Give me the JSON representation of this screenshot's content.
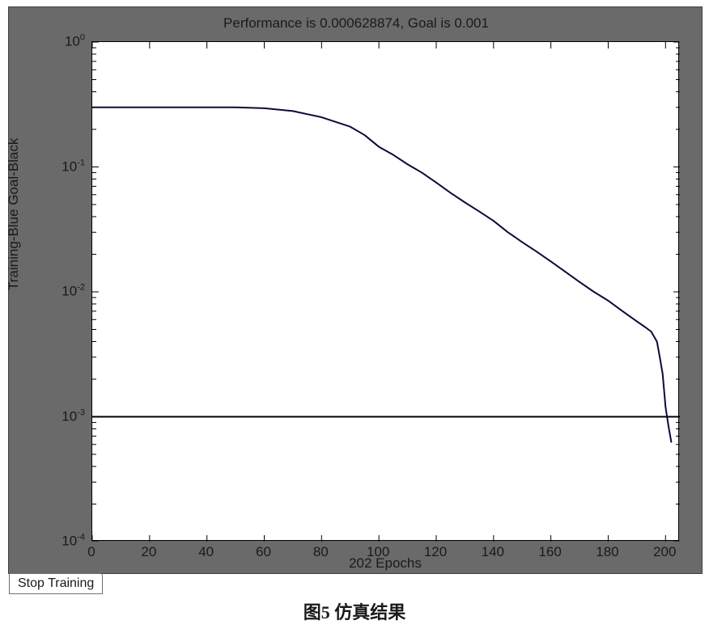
{
  "figure": {
    "title": "Performance is 0.000628874, Goal is 0.001",
    "xlabel": "202 Epochs",
    "ylabel": "Training-Blue   Goal-Black",
    "background_color": "#6a6a6a",
    "plot_background": "#ffffff",
    "axis_color": "#000000",
    "title_fontsize": 17,
    "label_fontsize": 17,
    "tick_fontsize": 17,
    "xlim": [
      0,
      205
    ],
    "ylim_log10": [
      -4,
      0
    ],
    "xticks": [
      0,
      20,
      40,
      60,
      80,
      100,
      120,
      140,
      160,
      180,
      200
    ],
    "ytick_exponents": [
      0,
      -1,
      -2,
      -3,
      -4
    ],
    "y_minor_ticks_per_decade": [
      2,
      3,
      4,
      5,
      6,
      7,
      8,
      9
    ],
    "goal_line": {
      "value": 0.001,
      "log10": -3,
      "color": "#000000",
      "width": 2.0
    },
    "training_curve": {
      "color": "#0a0a3a",
      "width": 2.0,
      "points": [
        {
          "x": 0,
          "y": 0.3
        },
        {
          "x": 20,
          "y": 0.3
        },
        {
          "x": 40,
          "y": 0.3
        },
        {
          "x": 50,
          "y": 0.3
        },
        {
          "x": 60,
          "y": 0.295
        },
        {
          "x": 70,
          "y": 0.28
        },
        {
          "x": 80,
          "y": 0.25
        },
        {
          "x": 90,
          "y": 0.21
        },
        {
          "x": 95,
          "y": 0.18
        },
        {
          "x": 100,
          "y": 0.145
        },
        {
          "x": 105,
          "y": 0.125
        },
        {
          "x": 110,
          "y": 0.105
        },
        {
          "x": 115,
          "y": 0.09
        },
        {
          "x": 120,
          "y": 0.075
        },
        {
          "x": 125,
          "y": 0.062
        },
        {
          "x": 130,
          "y": 0.052
        },
        {
          "x": 135,
          "y": 0.044
        },
        {
          "x": 140,
          "y": 0.037
        },
        {
          "x": 145,
          "y": 0.03
        },
        {
          "x": 150,
          "y": 0.025
        },
        {
          "x": 155,
          "y": 0.021
        },
        {
          "x": 160,
          "y": 0.0175
        },
        {
          "x": 165,
          "y": 0.0145
        },
        {
          "x": 170,
          "y": 0.012
        },
        {
          "x": 175,
          "y": 0.01
        },
        {
          "x": 180,
          "y": 0.0085
        },
        {
          "x": 185,
          "y": 0.007
        },
        {
          "x": 190,
          "y": 0.0058
        },
        {
          "x": 193,
          "y": 0.0052
        },
        {
          "x": 195,
          "y": 0.0048
        },
        {
          "x": 197,
          "y": 0.004
        },
        {
          "x": 198,
          "y": 0.003
        },
        {
          "x": 199,
          "y": 0.0022
        },
        {
          "x": 200,
          "y": 0.0012
        },
        {
          "x": 201,
          "y": 0.00085
        },
        {
          "x": 202,
          "y": 0.000628874
        }
      ]
    }
  },
  "controls": {
    "stop_label": "Stop Training"
  },
  "caption": "图5  仿真结果"
}
